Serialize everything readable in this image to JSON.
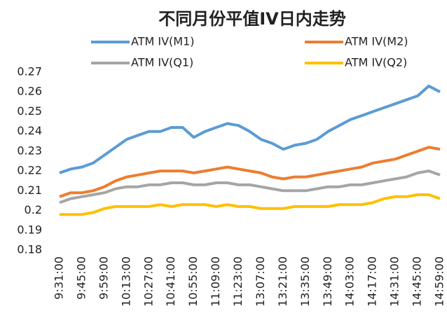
{
  "chart_data": {
    "type": "line",
    "title": "不同月份平值IV日内走势",
    "categories": [
      "9:31:00",
      null,
      "9:45:00",
      null,
      "9:59:00",
      null,
      "10:13:00",
      null,
      "10:27:00",
      null,
      "10:41:00",
      null,
      "10:55:00",
      null,
      "11:09:00",
      null,
      "11:23:00",
      null,
      "13:07:00",
      null,
      "13:21:00",
      null,
      "13:35:00",
      null,
      "13:49:00",
      null,
      "14:03:00",
      null,
      "14:17:00",
      null,
      "14:31:00",
      null,
      "14:45:00",
      null,
      "14:59:00"
    ],
    "series": [
      {
        "name": "ATM IV(M1)",
        "color": "#5b9bd5",
        "values": [
          0.219,
          0.221,
          0.222,
          0.224,
          0.228,
          0.232,
          0.236,
          0.238,
          0.24,
          0.24,
          0.242,
          0.242,
          0.237,
          0.24,
          0.242,
          0.244,
          0.243,
          0.24,
          0.236,
          0.234,
          0.231,
          0.233,
          0.234,
          0.236,
          0.24,
          0.243,
          0.246,
          0.248,
          0.25,
          0.252,
          0.254,
          0.256,
          0.258,
          0.263,
          0.26
        ]
      },
      {
        "name": "ATM IV(M2)",
        "color": "#ed7d31",
        "values": [
          0.207,
          0.209,
          0.209,
          0.21,
          0.212,
          0.215,
          0.217,
          0.218,
          0.219,
          0.22,
          0.22,
          0.22,
          0.219,
          0.22,
          0.221,
          0.222,
          0.221,
          0.22,
          0.219,
          0.217,
          0.216,
          0.217,
          0.217,
          0.218,
          0.219,
          0.22,
          0.221,
          0.222,
          0.224,
          0.225,
          0.226,
          0.228,
          0.23,
          0.232,
          0.231
        ]
      },
      {
        "name": "ATM IV(Q1)",
        "color": "#a5a5a5",
        "values": [
          0.204,
          0.206,
          0.207,
          0.208,
          0.209,
          0.211,
          0.212,
          0.212,
          0.213,
          0.213,
          0.214,
          0.214,
          0.213,
          0.213,
          0.214,
          0.214,
          0.213,
          0.213,
          0.212,
          0.211,
          0.21,
          0.21,
          0.21,
          0.211,
          0.212,
          0.212,
          0.213,
          0.213,
          0.214,
          0.215,
          0.216,
          0.217,
          0.219,
          0.22,
          0.218
        ]
      },
      {
        "name": "ATM IV(Q2)",
        "color": "#ffc000",
        "values": [
          0.198,
          0.198,
          0.198,
          0.199,
          0.201,
          0.202,
          0.202,
          0.202,
          0.202,
          0.203,
          0.202,
          0.203,
          0.203,
          0.203,
          0.202,
          0.203,
          0.202,
          0.202,
          0.201,
          0.201,
          0.201,
          0.202,
          0.202,
          0.202,
          0.202,
          0.203,
          0.203,
          0.203,
          0.204,
          0.206,
          0.207,
          0.207,
          0.208,
          0.208,
          0.206
        ]
      }
    ],
    "ylim": [
      0.18,
      0.27
    ],
    "yticks": [
      0.18,
      0.19,
      0.2,
      0.21,
      0.22,
      0.23,
      0.24,
      0.25,
      0.26,
      0.27
    ],
    "grid": false
  }
}
